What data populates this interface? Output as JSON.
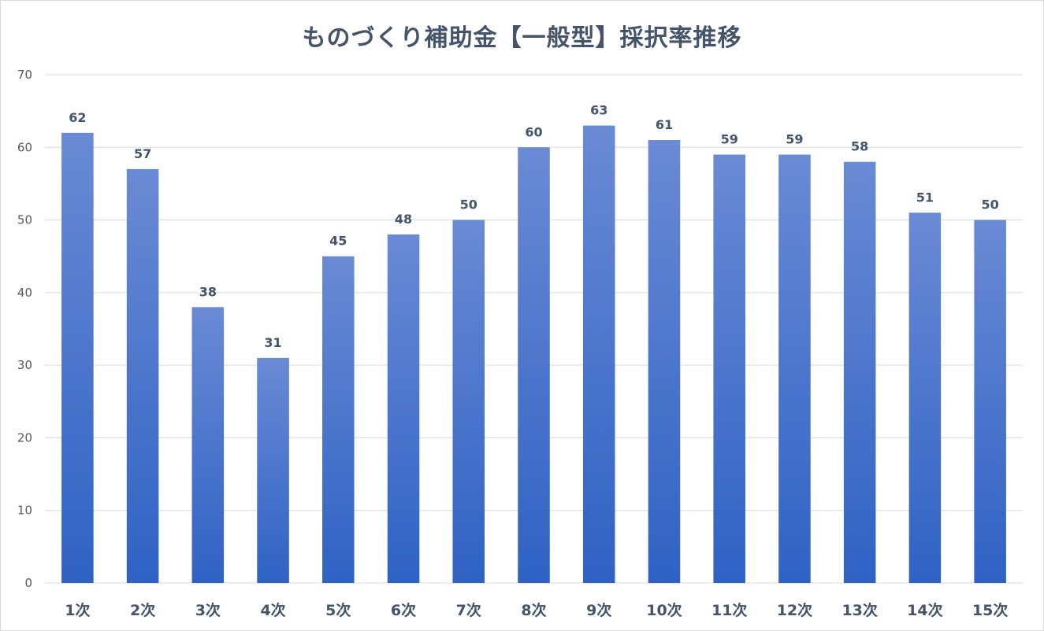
{
  "chart_data": {
    "type": "bar",
    "title": "ものづくり補助金【一般型】採択率推移",
    "categories": [
      "1次",
      "2次",
      "3次",
      "4次",
      "5次",
      "6次",
      "7次",
      "8次",
      "9次",
      "10次",
      "11次",
      "12次",
      "13次",
      "14次",
      "15次"
    ],
    "values": [
      62,
      57,
      38,
      31,
      45,
      48,
      50,
      60,
      63,
      61,
      59,
      59,
      58,
      51,
      50
    ],
    "ylim": [
      0,
      70
    ],
    "yticks": [
      0,
      10,
      20,
      30,
      40,
      50,
      60,
      70
    ],
    "xlabel": "",
    "ylabel": "",
    "grid": true,
    "bar_color_top": "#6a8ad4",
    "bar_color_bottom": "#2f62c4"
  }
}
